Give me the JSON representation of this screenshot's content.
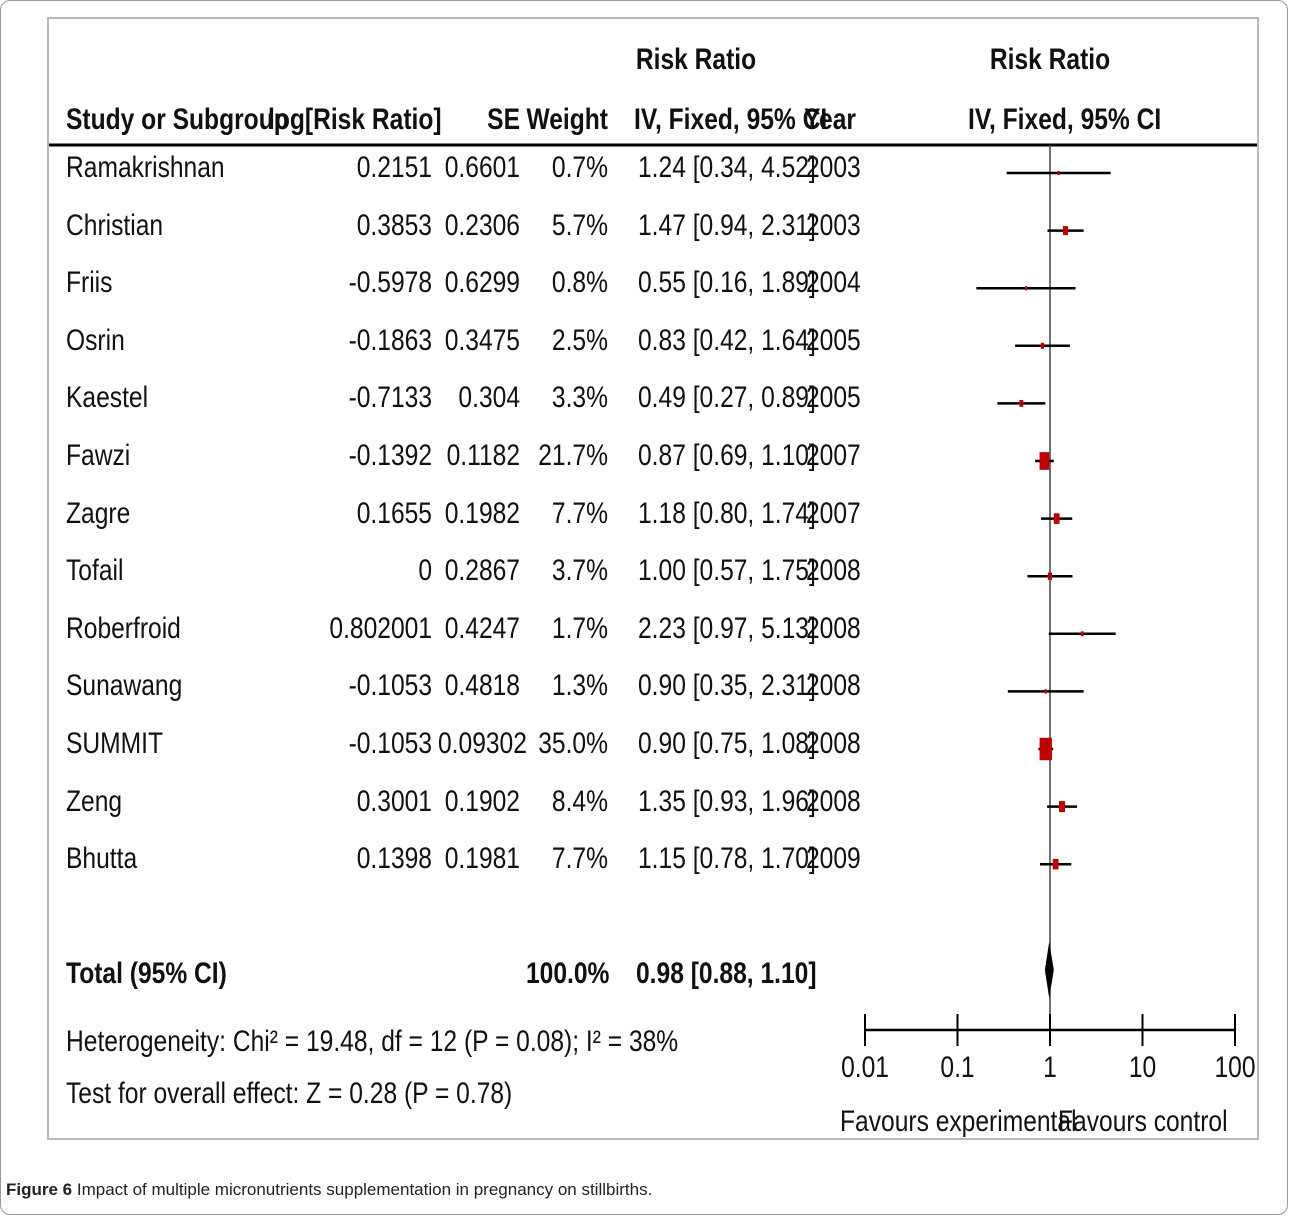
{
  "caption": {
    "label": "Figure 6",
    "text": "Impact of multiple micronutrients supplementation in pregnancy on stillbirths."
  },
  "header": {
    "risk_ratio_1": "Risk Ratio",
    "risk_ratio_2": "Risk Ratio",
    "study": "Study or Subgroup",
    "log_rr": "log[Risk Ratio]",
    "se": "SE",
    "weight": "Weight",
    "ci": "IV, Fixed, 95% CI",
    "year": "Year",
    "plot_ci": "IV, Fixed, 95% CI"
  },
  "rows": [
    {
      "study": "Ramakrishnan",
      "log_rr": "0.2151",
      "se": "0.6601",
      "weight": "0.7%",
      "ci": "1.24 [0.34, 4.52]",
      "year": "2003"
    },
    {
      "study": "Christian",
      "log_rr": "0.3853",
      "se": "0.2306",
      "weight": "5.7%",
      "ci": "1.47 [0.94, 2.31]",
      "year": "2003"
    },
    {
      "study": "Friis",
      "log_rr": "-0.5978",
      "se": "0.6299",
      "weight": "0.8%",
      "ci": "0.55 [0.16, 1.89]",
      "year": "2004"
    },
    {
      "study": "Osrin",
      "log_rr": "-0.1863",
      "se": "0.3475",
      "weight": "2.5%",
      "ci": "0.83 [0.42, 1.64]",
      "year": "2005"
    },
    {
      "study": "Kaestel",
      "log_rr": "-0.7133",
      "se": "0.304",
      "weight": "3.3%",
      "ci": "0.49 [0.27, 0.89]",
      "year": "2005"
    },
    {
      "study": "Fawzi",
      "log_rr": "-0.1392",
      "se": "0.1182",
      "weight": "21.7%",
      "ci": "0.87 [0.69, 1.10]",
      "year": "2007"
    },
    {
      "study": "Zagre",
      "log_rr": "0.1655",
      "se": "0.1982",
      "weight": "7.7%",
      "ci": "1.18 [0.80, 1.74]",
      "year": "2007"
    },
    {
      "study": "Tofail",
      "log_rr": "0",
      "se": "0.2867",
      "weight": "3.7%",
      "ci": "1.00 [0.57, 1.75]",
      "year": "2008"
    },
    {
      "study": "Roberfroid",
      "log_rr": "0.802001",
      "se": "0.4247",
      "weight": "1.7%",
      "ci": "2.23 [0.97, 5.13]",
      "year": "2008"
    },
    {
      "study": "Sunawang",
      "log_rr": "-0.1053",
      "se": "0.4818",
      "weight": "1.3%",
      "ci": "0.90 [0.35, 2.31]",
      "year": "2008"
    },
    {
      "study": "SUMMIT",
      "log_rr": "-0.1053",
      "se": "0.09302",
      "weight": "35.0%",
      "ci": "0.90 [0.75, 1.08]",
      "year": "2008"
    },
    {
      "study": "Zeng",
      "log_rr": "0.3001",
      "se": "0.1902",
      "weight": "8.4%",
      "ci": "1.35 [0.93, 1.96]",
      "year": "2008"
    },
    {
      "study": "Bhutta",
      "log_rr": "0.1398",
      "se": "0.1981",
      "weight": "7.7%",
      "ci": "1.15 [0.78, 1.70]",
      "year": "2009"
    }
  ],
  "total": {
    "label": "Total (95% CI)",
    "weight": "100.0%",
    "ci": "0.98 [0.88, 1.10]"
  },
  "footer": {
    "heterogeneity": "Heterogeneity: Chi² = 19.48, df = 12 (P = 0.08); I² = 38%",
    "overall": "Test for overall effect: Z = 0.28 (P = 0.78)"
  },
  "axis": {
    "left_label": "Favours experimental",
    "right_label": "Favours control"
  },
  "chart_data": {
    "type": "forest",
    "scale": "log",
    "xlim": [
      0.01,
      100
    ],
    "ticks": [
      {
        "value": 0.01,
        "label": "0.01"
      },
      {
        "value": 0.1,
        "label": "0.1"
      },
      {
        "value": 1,
        "label": "1"
      },
      {
        "value": 10,
        "label": "10"
      },
      {
        "value": 100,
        "label": "100"
      }
    ],
    "reference_line": 1,
    "marker_color": "#c00000",
    "studies": [
      {
        "name": "Ramakrishnan",
        "rr": 1.24,
        "lo": 0.34,
        "hi": 4.52,
        "weight": 0.7
      },
      {
        "name": "Christian",
        "rr": 1.47,
        "lo": 0.94,
        "hi": 2.31,
        "weight": 5.7
      },
      {
        "name": "Friis",
        "rr": 0.55,
        "lo": 0.16,
        "hi": 1.89,
        "weight": 0.8
      },
      {
        "name": "Osrin",
        "rr": 0.83,
        "lo": 0.42,
        "hi": 1.64,
        "weight": 2.5
      },
      {
        "name": "Kaestel",
        "rr": 0.49,
        "lo": 0.27,
        "hi": 0.89,
        "weight": 3.3
      },
      {
        "name": "Fawzi",
        "rr": 0.87,
        "lo": 0.69,
        "hi": 1.1,
        "weight": 21.7
      },
      {
        "name": "Zagre",
        "rr": 1.18,
        "lo": 0.8,
        "hi": 1.74,
        "weight": 7.7
      },
      {
        "name": "Tofail",
        "rr": 1.0,
        "lo": 0.57,
        "hi": 1.75,
        "weight": 3.7
      },
      {
        "name": "Roberfroid",
        "rr": 2.23,
        "lo": 0.97,
        "hi": 5.13,
        "weight": 1.7
      },
      {
        "name": "Sunawang",
        "rr": 0.9,
        "lo": 0.35,
        "hi": 2.31,
        "weight": 1.3
      },
      {
        "name": "SUMMIT",
        "rr": 0.9,
        "lo": 0.75,
        "hi": 1.08,
        "weight": 35.0
      },
      {
        "name": "Zeng",
        "rr": 1.35,
        "lo": 0.93,
        "hi": 1.96,
        "weight": 8.4
      },
      {
        "name": "Bhutta",
        "rr": 1.15,
        "lo": 0.78,
        "hi": 1.7,
        "weight": 7.7
      }
    ],
    "total": {
      "rr": 0.98,
      "lo": 0.88,
      "hi": 1.1
    }
  }
}
